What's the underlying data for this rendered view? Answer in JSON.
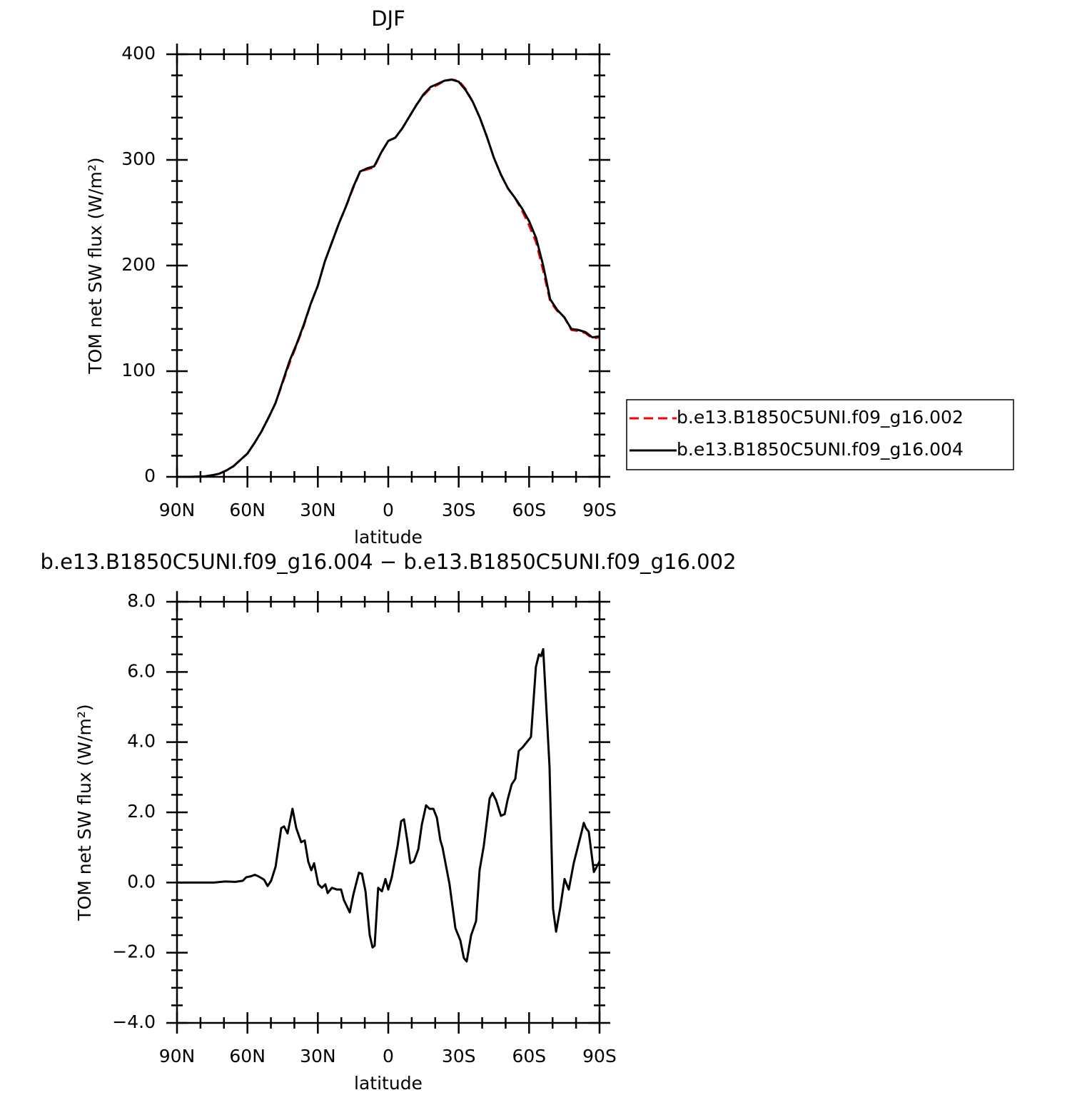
{
  "chart_data": [
    {
      "type": "line",
      "title": "DJF",
      "xlabel": "latitude",
      "ylabel": "TOM net SW flux (W/m²)",
      "x": [
        90,
        87,
        84,
        81,
        78,
        75,
        72,
        69,
        66,
        63,
        60,
        57,
        54,
        51,
        48,
        45,
        42,
        39,
        36,
        33,
        30,
        27,
        24,
        21,
        18,
        15,
        12,
        9,
        6,
        3,
        0,
        -3,
        -6,
        -9,
        -12,
        -15,
        -18,
        -21,
        -24,
        -27,
        -30,
        -33,
        -36,
        -39,
        -42,
        -45,
        -48,
        -51,
        -54,
        -57,
        -60,
        -63,
        -66,
        -69,
        -72,
        -75,
        -78,
        -81,
        -84,
        -87,
        -90
      ],
      "series": [
        {
          "name": "b.e13.B1850C5UNI.f09_g16.002",
          "color": "#ff0000",
          "line_style": "dashed",
          "values": [
            0,
            0,
            0,
            0.2,
            0.5,
            1.5,
            3,
            6,
            10,
            16,
            22,
            32,
            43,
            56,
            70,
            89,
            108,
            125,
            143,
            164,
            181,
            204,
            222,
            240,
            256,
            273,
            289,
            291,
            293,
            307,
            318,
            321,
            330,
            341,
            352,
            361,
            368,
            371,
            375,
            376,
            375,
            367,
            355,
            340,
            322,
            302,
            286,
            273,
            264,
            252,
            238,
            222,
            195,
            166,
            157,
            151,
            139,
            138,
            136,
            131,
            132
          ]
        },
        {
          "name": "b.e13.B1850C5UNI.f09_g16.004",
          "color": "#000000",
          "line_style": "solid",
          "values": [
            0,
            0,
            0,
            0.2,
            0.5,
            1.5,
            3,
            6,
            10,
            16,
            22,
            32,
            43,
            56,
            70,
            90,
            110,
            126,
            144,
            164,
            181,
            204,
            222,
            240,
            256,
            274,
            289,
            292,
            294,
            307,
            318,
            321,
            330,
            341,
            352,
            362,
            369,
            372,
            375,
            376,
            374,
            366,
            355,
            340,
            322,
            302,
            286,
            273,
            264,
            254,
            242,
            226,
            200,
            168,
            158,
            151,
            140,
            139,
            137,
            132,
            133
          ]
        }
      ],
      "xlim": [
        90,
        -90
      ],
      "xticks": [
        {
          "value": 90,
          "label": "90N"
        },
        {
          "value": 60,
          "label": "60N"
        },
        {
          "value": 30,
          "label": "30N"
        },
        0,
        {
          "value": -30,
          "label": "30S"
        },
        {
          "value": -60,
          "label": "60S"
        },
        {
          "value": -90,
          "label": "90S"
        }
      ],
      "ylim": [
        0,
        400
      ],
      "yticks": [
        0,
        100,
        200,
        300,
        400
      ],
      "x_minor": 3,
      "y_minor": 5,
      "legend": "right"
    },
    {
      "type": "line",
      "title": "b.e13.B1850C5UNI.f09_g16.004 − b.e13.B1850C5UNI.f09_g16.002",
      "xlabel": "latitude",
      "ylabel": "TOM net SW flux (W/m²)",
      "x": [
        90,
        74.2,
        69.6,
        65.1,
        62.0,
        60.5,
        58.4,
        56.9,
        55.4,
        52.9,
        51.4,
        49.9,
        48.0,
        45.6,
        44.4,
        42.9,
        40.8,
        39.2,
        37.1,
        35.6,
        34.1,
        32.8,
        31.6,
        29.8,
        28.3,
        26.8,
        25.8,
        24.0,
        21.9,
        20.1,
        18.9,
        16.4,
        14.9,
        12.5,
        11.2,
        9.7,
        7.9,
        6.7,
        5.8,
        4.3,
        2.7,
        1.2,
        0,
        -1.5,
        -4.0,
        -5.5,
        -6.7,
        -8.2,
        -9.4,
        -10.9,
        -12.8,
        -14.3,
        -16.1,
        -17.6,
        -19.2,
        -20.7,
        -22.2,
        -23.1,
        -26.1,
        -28.6,
        -30.7,
        -32.2,
        -33.4,
        -35.3,
        -37.4,
        -38.9,
        -40.7,
        -43.2,
        -44.4,
        -45.9,
        -48.0,
        -49.6,
        -50.8,
        -52.6,
        -54.1,
        -55.6,
        -57.2,
        -58.4,
        -60.8,
        -62.9,
        -64.2,
        -65.1,
        -66.0,
        -68.7,
        -70.2,
        -71.5,
        -73.3,
        -75.1,
        -76.9,
        -79.0,
        -82.4,
        -83.3,
        -84.2,
        -85.4,
        -87.6,
        -90
      ],
      "values": [
        0,
        0,
        0.03,
        0.02,
        0.05,
        0.15,
        0.18,
        0.22,
        0.18,
        0.08,
        -0.1,
        0.05,
        0.45,
        1.55,
        1.6,
        1.4,
        2.1,
        1.55,
        1.15,
        1.2,
        0.6,
        0.35,
        0.55,
        -0.05,
        -0.15,
        -0.05,
        -0.3,
        -0.15,
        -0.2,
        -0.2,
        -0.5,
        -0.85,
        -0.35,
        0.28,
        0.25,
        -0.25,
        -1.5,
        -1.85,
        -1.8,
        -0.15,
        -0.25,
        0.1,
        -0.2,
        0.15,
        1.05,
        1.75,
        1.8,
        1.15,
        0.55,
        0.6,
        0.95,
        1.65,
        2.2,
        2.1,
        2.1,
        1.85,
        1.2,
        1.0,
        -0.05,
        -1.3,
        -1.65,
        -2.15,
        -2.25,
        -1.5,
        -1.1,
        0.35,
        1.05,
        2.4,
        2.55,
        2.35,
        1.9,
        1.95,
        2.35,
        2.8,
        2.95,
        3.75,
        3.85,
        3.95,
        4.15,
        6.15,
        6.5,
        6.45,
        6.65,
        3.3,
        -0.75,
        -1.4,
        -0.7,
        0.1,
        -0.2,
        0.55,
        1.45,
        1.7,
        1.55,
        1.45,
        0.3,
        0.6
      ],
      "color": "#000000",
      "xlim": [
        90,
        -90
      ],
      "xticks": [
        {
          "value": 90,
          "label": "90N"
        },
        {
          "value": 60,
          "label": "60N"
        },
        {
          "value": 30,
          "label": "30N"
        },
        0,
        {
          "value": -30,
          "label": "30S"
        },
        {
          "value": -60,
          "label": "60S"
        },
        {
          "value": -90,
          "label": "90S"
        }
      ],
      "ylim": [
        -4,
        8
      ],
      "yticks": [
        {
          "value": -4,
          "label": "−4.0"
        },
        {
          "value": -2,
          "label": "−2.0"
        },
        {
          "value": 0,
          "label": "0.0"
        },
        {
          "value": 2,
          "label": "2.0"
        },
        {
          "value": 4,
          "label": "4.0"
        },
        {
          "value": 6,
          "label": "6.0"
        },
        {
          "value": 8,
          "label": "8.0"
        }
      ],
      "x_minor": 3,
      "y_minor": 4
    }
  ]
}
